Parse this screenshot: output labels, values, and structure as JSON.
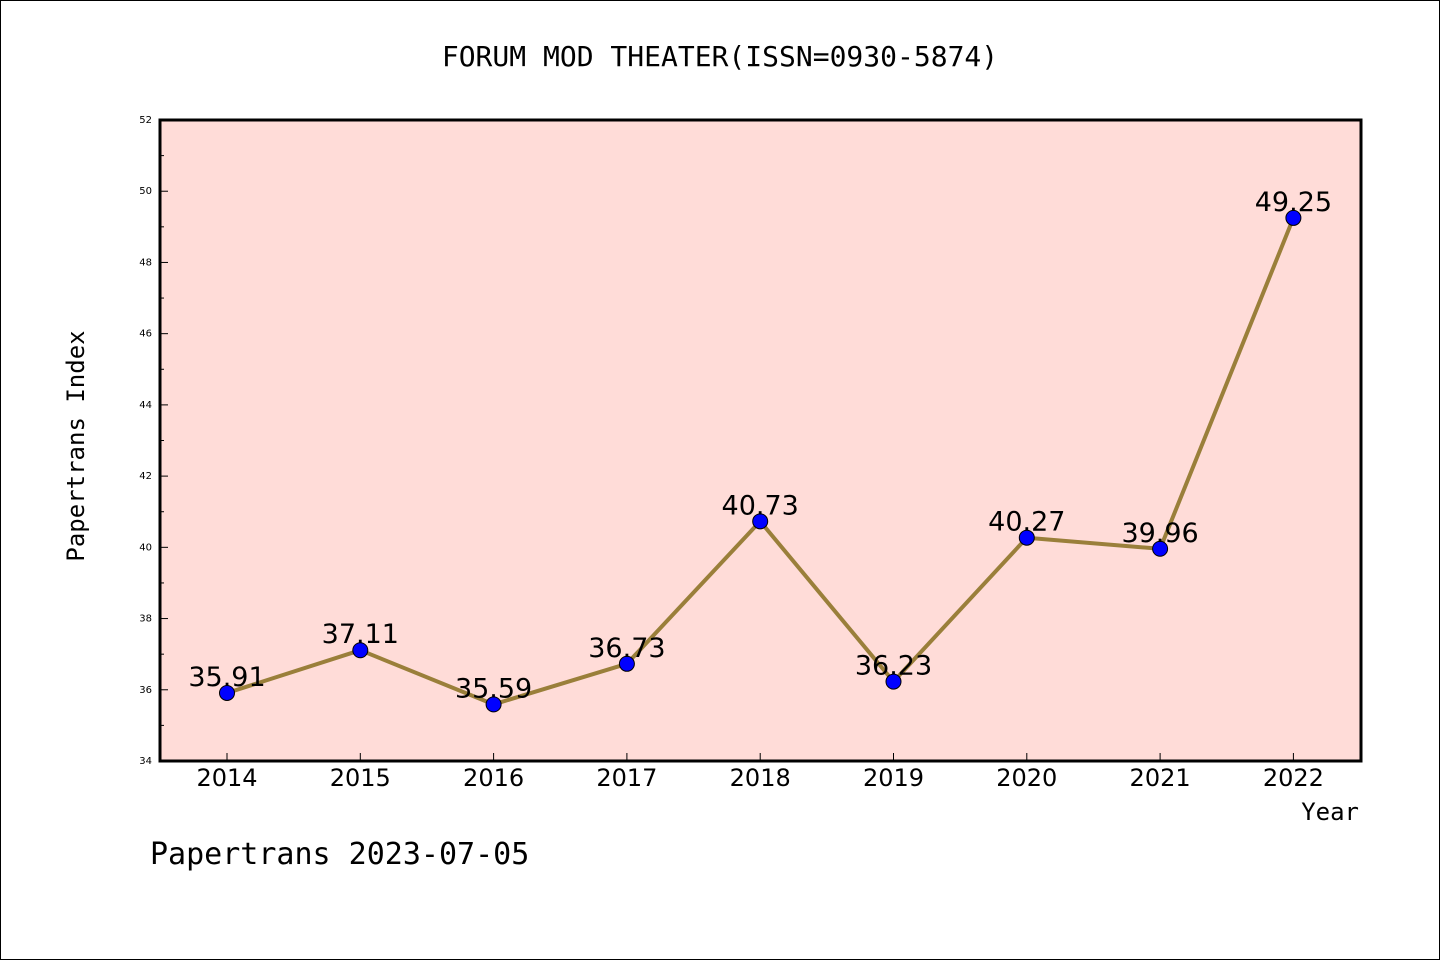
{
  "chart_data": {
    "type": "line",
    "title": "FORUM MOD THEATER(ISSN=0930-5874)",
    "xlabel": "Year",
    "ylabel": "Papertrans Index",
    "footer": "Papertrans 2023-07-05",
    "categories": [
      "2014",
      "2015",
      "2016",
      "2017",
      "2018",
      "2019",
      "2020",
      "2021",
      "2022"
    ],
    "series": [
      {
        "values": [
          35.91,
          37.11,
          35.59,
          36.73,
          40.73,
          36.23,
          40.27,
          39.96,
          49.25
        ],
        "labels": [
          "35.91",
          "37.11",
          "35.59",
          "36.73",
          "40.73",
          "36.23",
          "40.27",
          "39.96",
          "49.25"
        ]
      }
    ],
    "ylim": [
      34,
      52
    ],
    "yticks": [
      "34",
      "36",
      "38",
      "40",
      "42",
      "44",
      "46",
      "48",
      "50",
      "52"
    ],
    "grid": false,
    "legend": "none",
    "colors": {
      "plot_background": "#ffdcd8",
      "line": "#9a7f3a",
      "marker": "#0000ff"
    }
  }
}
